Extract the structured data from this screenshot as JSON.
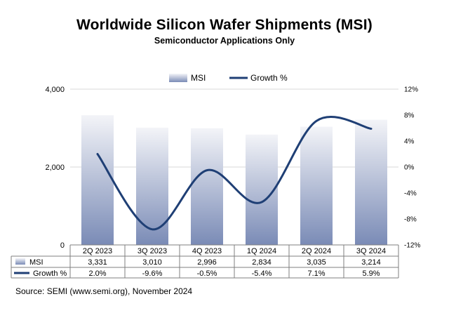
{
  "title": "Worldwide Silicon Wafer Shipments (MSI)",
  "subtitle": "Semiconductor Applications Only",
  "source": "Source: SEMI (www.semi.org), November 2024",
  "colors": {
    "bar_top": "#f3f4f8",
    "bar_bottom": "#7a8bb6",
    "line": "#1f3f75",
    "grid": "#d9d9d9"
  },
  "chart_data": {
    "type": "bar",
    "categories": [
      "2Q 2023",
      "3Q 2023",
      "4Q 2023",
      "1Q 2024",
      "2Q 2024",
      "3Q 2024"
    ],
    "series": [
      {
        "name": "MSI",
        "type": "bar",
        "axis": "left",
        "values": [
          3331,
          3010,
          2996,
          2834,
          3035,
          3214
        ]
      },
      {
        "name": "Growth %",
        "type": "line",
        "axis": "right",
        "smooth": true,
        "values": [
          2.0,
          -9.6,
          -0.5,
          -5.4,
          7.1,
          5.9
        ]
      }
    ],
    "y_left": {
      "lim": [
        0,
        4000
      ],
      "ticks": [
        "0",
        "2,000",
        "4,000"
      ],
      "tick_values": [
        0,
        2000,
        4000
      ]
    },
    "y_right": {
      "lim": [
        -12,
        12
      ],
      "ticks": [
        "-12%",
        "-8%",
        "-4%",
        "0%",
        "4%",
        "8%",
        "12%"
      ],
      "tick_values": [
        -12,
        -8,
        -4,
        0,
        4,
        8,
        12
      ]
    },
    "legend_position": "top-center",
    "data_table": {
      "rows": [
        {
          "label": "MSI",
          "values": [
            "3,331",
            "3,010",
            "2,996",
            "2,834",
            "3,035",
            "3,214"
          ]
        },
        {
          "label": "Growth %",
          "values": [
            "2.0%",
            "-9.6%",
            "-0.5%",
            "-5.4%",
            "7.1%",
            "5.9%"
          ]
        }
      ]
    }
  }
}
